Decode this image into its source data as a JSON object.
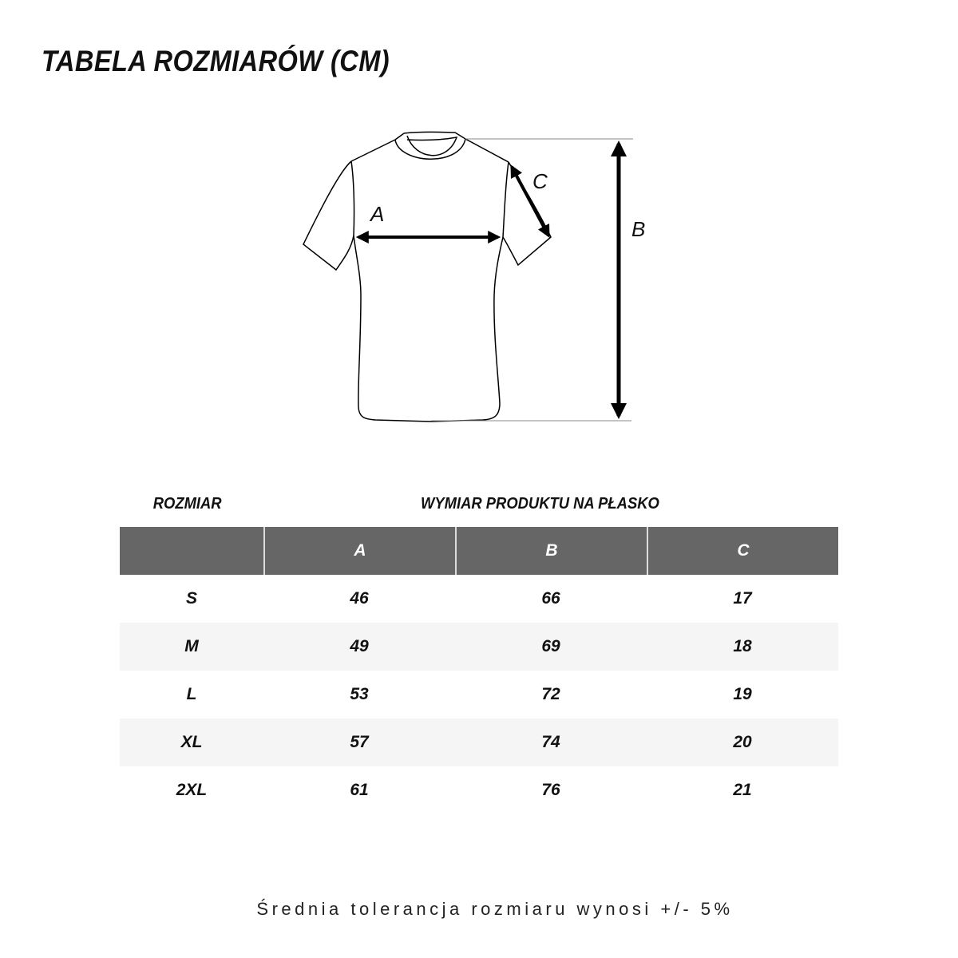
{
  "title": "TABELA ROZMIARÓW (CM)",
  "diagram": {
    "labels": {
      "a": "A",
      "b": "B",
      "c": "C"
    }
  },
  "table": {
    "size_header": "ROZMIAR",
    "measure_header": "WYMIAR PRODUKTU NA PŁASKO",
    "columns": [
      "A",
      "B",
      "C"
    ],
    "rows": [
      {
        "size": "S",
        "a": "46",
        "b": "66",
        "c": "17"
      },
      {
        "size": "M",
        "a": "49",
        "b": "69",
        "c": "18"
      },
      {
        "size": "L",
        "a": "53",
        "b": "72",
        "c": "19"
      },
      {
        "size": "XL",
        "a": "57",
        "b": "74",
        "c": "20"
      },
      {
        "size": "2XL",
        "a": "61",
        "b": "76",
        "c": "21"
      }
    ]
  },
  "footer": "Średnia tolerancja rozmiaru wynosi +/- 5%",
  "colors": {
    "header_bg": "#666666",
    "alt_row_bg": "#f5f5f5"
  }
}
